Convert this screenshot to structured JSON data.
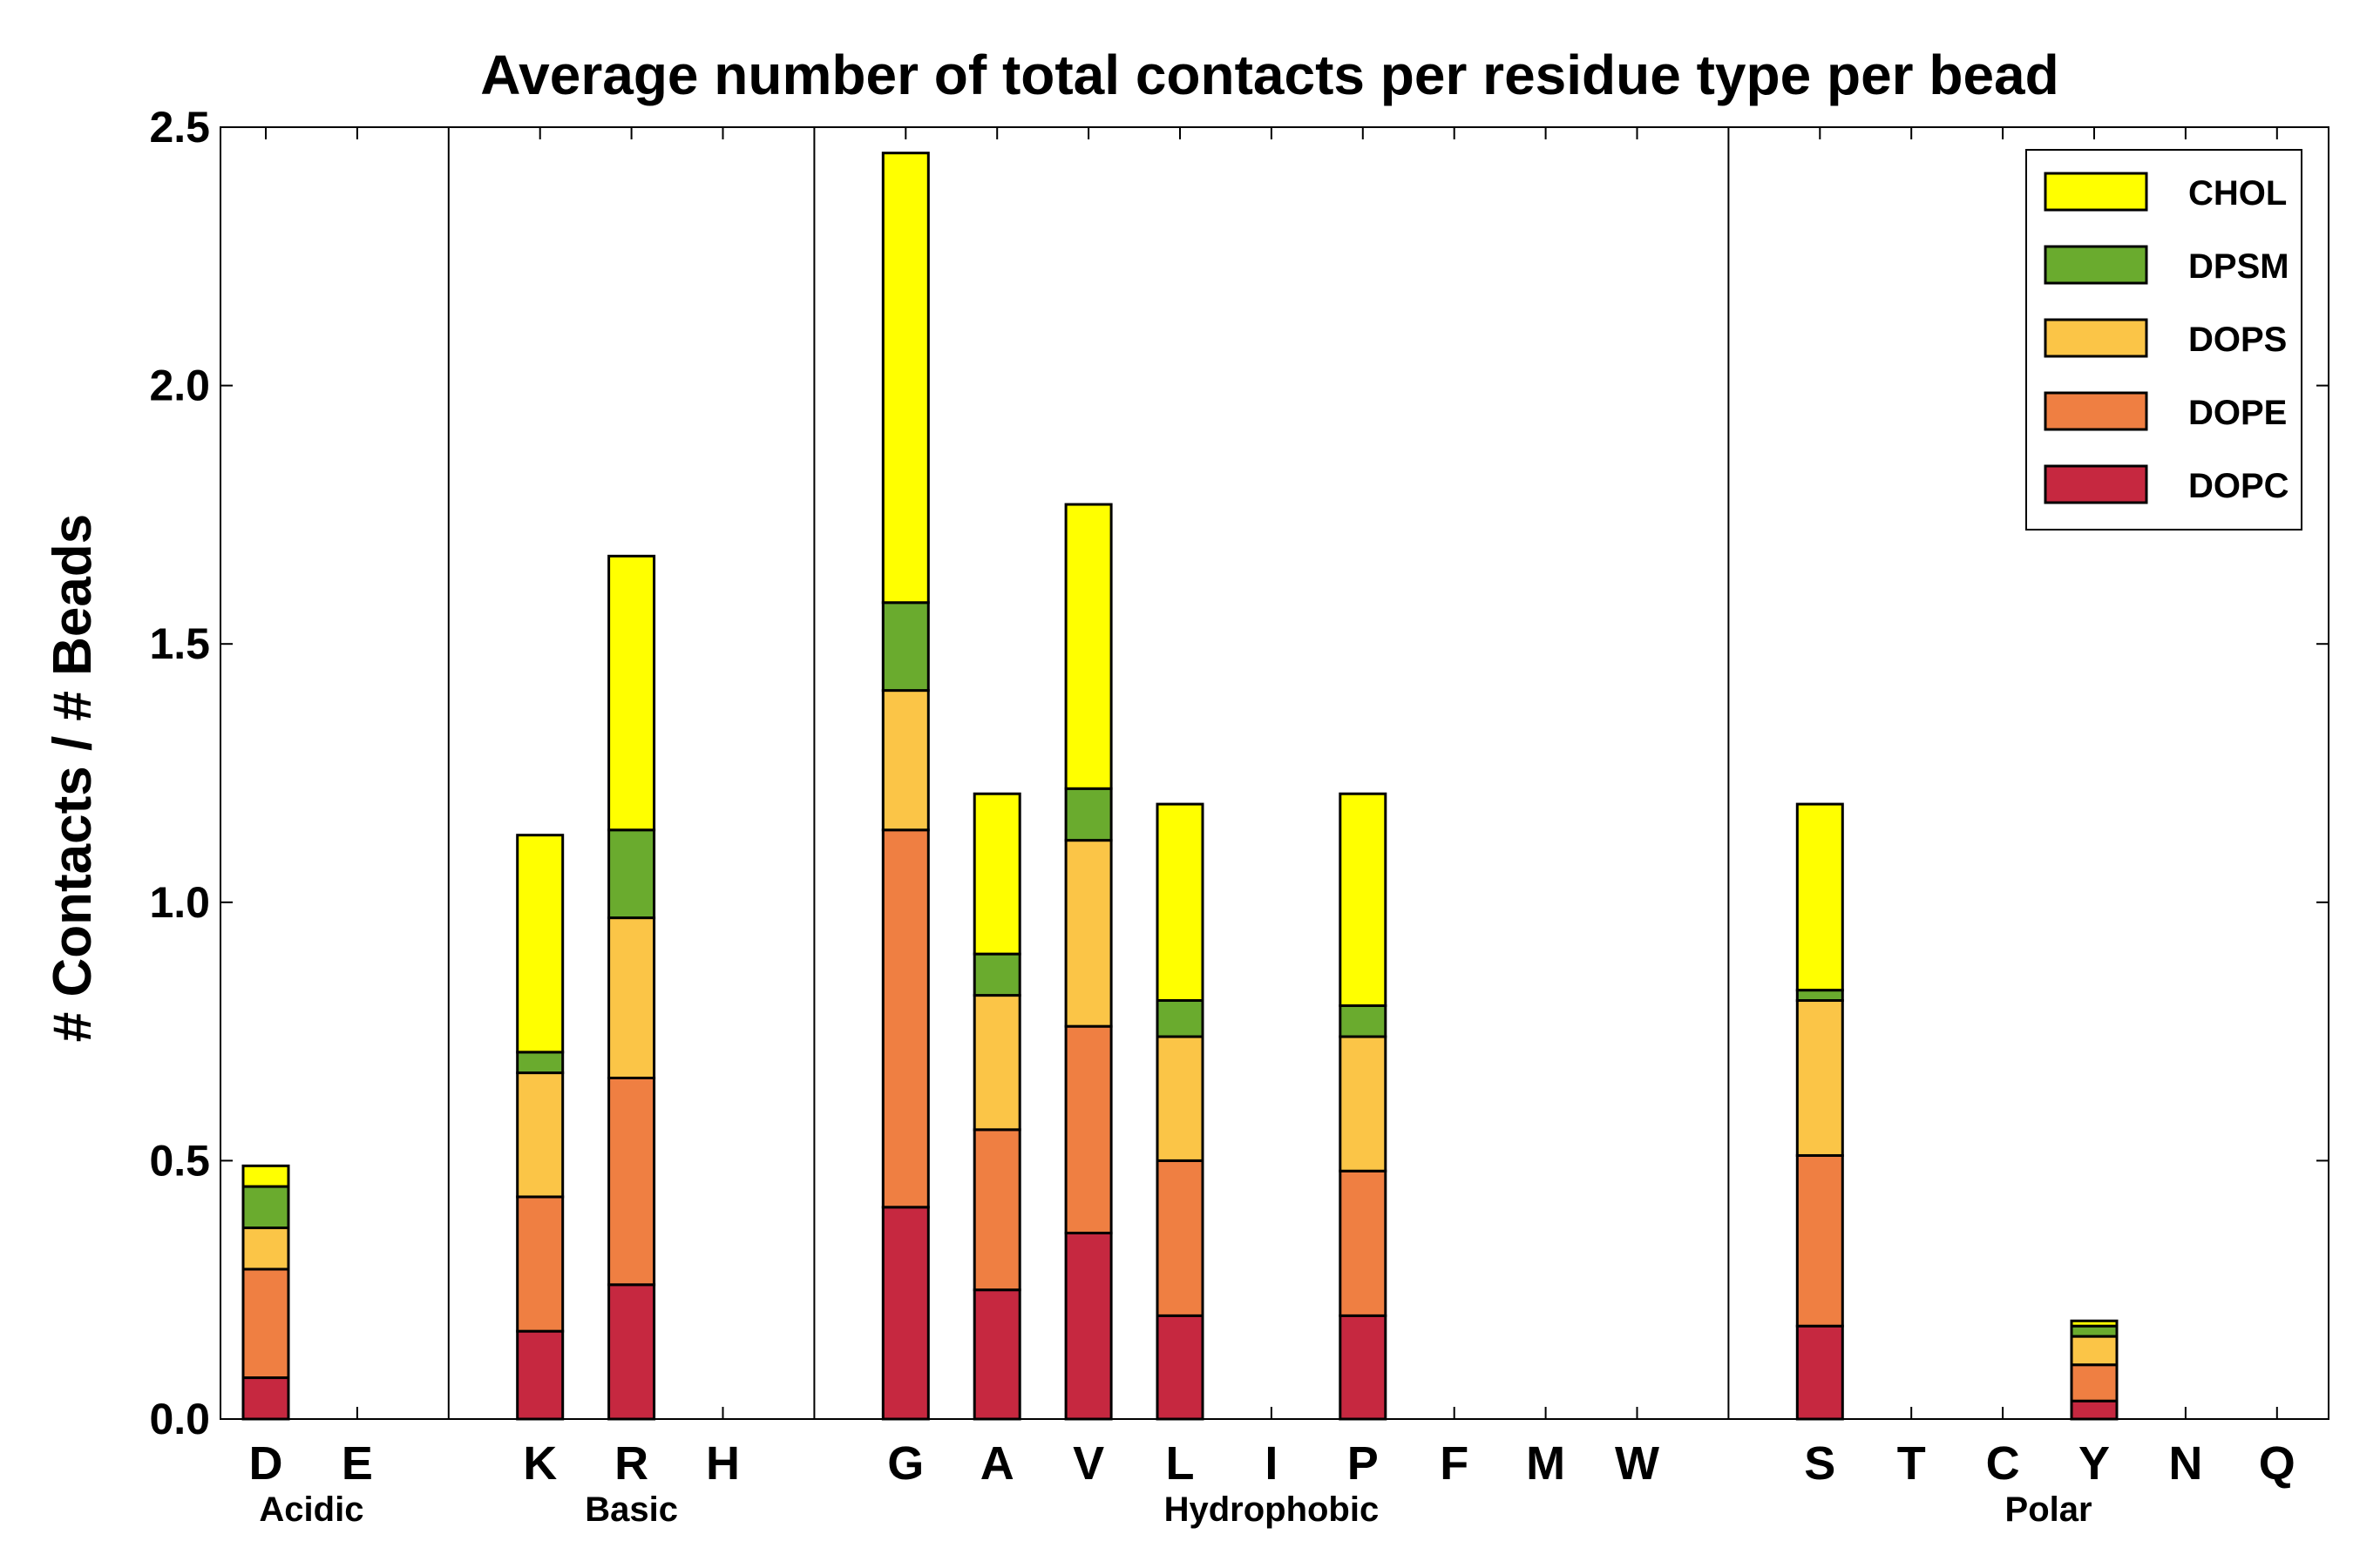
{
  "chart_data": {
    "type": "bar",
    "stacked": true,
    "title": "Average number of total contacts per residue type per bead",
    "ylabel": "# Contacts / # Beads",
    "xlabel": "",
    "ylim": [
      0,
      2.5
    ],
    "yticks": [
      "0.0",
      "0.5",
      "1.0",
      "1.5",
      "2.0",
      "2.5"
    ],
    "legend_position": "top-right",
    "categories": [
      "D",
      "E",
      "K",
      "R",
      "H",
      "G",
      "A",
      "V",
      "L",
      "I",
      "P",
      "F",
      "M",
      "W",
      "S",
      "T",
      "C",
      "Y",
      "N",
      "Q"
    ],
    "groups": [
      {
        "label": "Acidic",
        "members": [
          "D",
          "E"
        ]
      },
      {
        "label": "Basic",
        "members": [
          "K",
          "R",
          "H"
        ]
      },
      {
        "label": "Hydrophobic",
        "members": [
          "G",
          "A",
          "V",
          "L",
          "I",
          "P",
          "F",
          "M",
          "W"
        ]
      },
      {
        "label": "Polar",
        "members": [
          "S",
          "T",
          "C",
          "Y",
          "N",
          "Q"
        ]
      }
    ],
    "series": [
      {
        "name": "DOPC",
        "color": "#c62840",
        "values": [
          0.08,
          0,
          0.17,
          0.26,
          0,
          0.41,
          0.25,
          0.36,
          0.2,
          0,
          0.2,
          0,
          0,
          0,
          0.18,
          0,
          0,
          0.035,
          0,
          0
        ]
      },
      {
        "name": "DOPE",
        "color": "#ef7f42",
        "values": [
          0.21,
          0,
          0.26,
          0.4,
          0,
          0.73,
          0.31,
          0.4,
          0.3,
          0,
          0.28,
          0,
          0,
          0,
          0.33,
          0,
          0,
          0.07,
          0,
          0
        ]
      },
      {
        "name": "DOPS",
        "color": "#fbc547",
        "values": [
          0.08,
          0,
          0.24,
          0.31,
          0,
          0.27,
          0.26,
          0.36,
          0.24,
          0,
          0.26,
          0,
          0,
          0,
          0.3,
          0,
          0,
          0.055,
          0,
          0
        ]
      },
      {
        "name": "DPSM",
        "color": "#6aab2e",
        "values": [
          0.08,
          0,
          0.04,
          0.17,
          0,
          0.17,
          0.08,
          0.1,
          0.07,
          0,
          0.06,
          0,
          0,
          0,
          0.02,
          0,
          0,
          0.02,
          0,
          0
        ]
      },
      {
        "name": "CHOL",
        "color": "#ffff00",
        "values": [
          0.04,
          0,
          0.42,
          0.53,
          0,
          0.87,
          0.31,
          0.55,
          0.38,
          0,
          0.41,
          0,
          0,
          0,
          0.36,
          0,
          0,
          0.01,
          0,
          0
        ]
      }
    ]
  }
}
